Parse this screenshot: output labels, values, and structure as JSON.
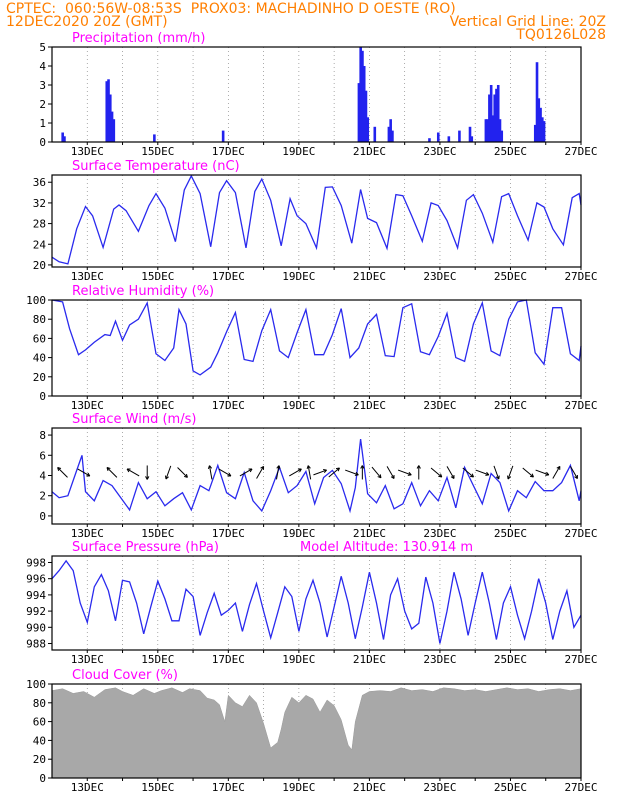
{
  "header": {
    "line1": "CPTEC:  060:56W-08:53S  PROX03: MACHADINHO D OESTE (RO)",
    "line2_left": "12DEC2020 20Z (GMT)",
    "line2_right": "Vertical Grid Line: 20Z",
    "line3_right": "TQ0126L028"
  },
  "x_ticks": [
    "13DEC",
    "15DEC",
    "17DEC",
    "19DEC",
    "21DEC",
    "23DEC",
    "25DEC",
    "27DEC"
  ],
  "chart_data": [
    {
      "type": "bar",
      "title": "Precipitation (mm/h)",
      "ylim": [
        0,
        5
      ],
      "yticks": [
        "0",
        "1",
        "2",
        "3",
        "4",
        "5"
      ],
      "bars": [
        [
          12.3,
          0.5
        ],
        [
          12.35,
          0.3
        ],
        [
          13.55,
          3.2
        ],
        [
          13.6,
          3.3
        ],
        [
          13.65,
          2.5
        ],
        [
          13.7,
          1.6
        ],
        [
          13.75,
          1.2
        ],
        [
          14.9,
          0.4
        ],
        [
          16.85,
          0.6
        ],
        [
          20.7,
          3.1
        ],
        [
          20.75,
          5.0
        ],
        [
          20.8,
          4.8
        ],
        [
          20.85,
          4.0
        ],
        [
          20.9,
          2.7
        ],
        [
          20.95,
          1.3
        ],
        [
          21.15,
          0.8
        ],
        [
          21.55,
          0.8
        ],
        [
          21.6,
          1.2
        ],
        [
          21.65,
          0.6
        ],
        [
          22.7,
          0.2
        ],
        [
          22.95,
          0.5
        ],
        [
          23.25,
          0.3
        ],
        [
          23.55,
          0.6
        ],
        [
          23.85,
          0.8
        ],
        [
          23.9,
          0.3
        ],
        [
          24.3,
          1.2
        ],
        [
          24.35,
          1.2
        ],
        [
          24.4,
          2.5
        ],
        [
          24.45,
          3.0
        ],
        [
          24.5,
          1.4
        ],
        [
          24.55,
          2.5
        ],
        [
          24.6,
          2.8
        ],
        [
          24.65,
          3.0
        ],
        [
          24.7,
          1.2
        ],
        [
          24.75,
          0.6
        ],
        [
          25.7,
          0.9
        ],
        [
          25.75,
          4.2
        ],
        [
          25.8,
          2.3
        ],
        [
          25.85,
          1.8
        ],
        [
          25.9,
          1.3
        ],
        [
          25.95,
          1.1
        ]
      ]
    },
    {
      "type": "line",
      "title": "Surface Temperature (nC)",
      "ylim": [
        19.6,
        37.4
      ],
      "yticks": [
        "20",
        "24",
        "28",
        "32",
        "36"
      ],
      "x": [
        12.0,
        12.2,
        12.45,
        12.7,
        12.95,
        13.15,
        13.45,
        13.75,
        13.9,
        14.1,
        14.45,
        14.75,
        14.95,
        15.2,
        15.5,
        15.75,
        15.95,
        16.2,
        16.5,
        16.75,
        16.95,
        17.2,
        17.5,
        17.75,
        17.95,
        18.2,
        18.5,
        18.75,
        18.95,
        19.2,
        19.5,
        19.75,
        19.95,
        20.2,
        20.5,
        20.75,
        20.95,
        21.2,
        21.5,
        21.75,
        21.95,
        22.2,
        22.5,
        22.75,
        22.95,
        23.2,
        23.5,
        23.75,
        23.95,
        24.2,
        24.5,
        24.75,
        24.95,
        25.2,
        25.5,
        25.75,
        25.95,
        26.2,
        26.5,
        26.75,
        26.95,
        27.0
      ],
      "y": [
        21.5,
        20.6,
        20.2,
        27.0,
        31.3,
        29.5,
        23.4,
        30.8,
        31.6,
        30.5,
        26.5,
        31.5,
        33.8,
        31.0,
        24.5,
        34.5,
        37.2,
        33.8,
        23.5,
        34.0,
        36.3,
        34.0,
        23.3,
        34.2,
        36.6,
        32.5,
        23.7,
        32.8,
        29.5,
        28.0,
        23.3,
        35.0,
        35.1,
        31.5,
        24.2,
        34.6,
        29.0,
        28.2,
        23.2,
        33.6,
        33.4,
        29.5,
        24.6,
        32.0,
        31.5,
        28.6,
        23.3,
        32.5,
        33.6,
        30.0,
        24.4,
        33.2,
        33.8,
        29.5,
        24.8,
        32.0,
        31.2,
        27.0,
        23.9,
        33.0,
        33.8,
        31.6
      ]
    },
    {
      "type": "line",
      "title": "Relative Humidity (%)",
      "ylim": [
        0,
        100
      ],
      "yticks": [
        "0",
        "20",
        "40",
        "60",
        "80",
        "100"
      ],
      "x": [
        12.0,
        12.3,
        12.5,
        12.75,
        12.95,
        13.2,
        13.5,
        13.65,
        13.8,
        14.0,
        14.2,
        14.45,
        14.7,
        14.95,
        15.2,
        15.45,
        15.6,
        15.8,
        16.0,
        16.2,
        16.5,
        16.7,
        16.95,
        17.2,
        17.45,
        17.7,
        17.95,
        18.2,
        18.45,
        18.7,
        18.95,
        19.2,
        19.45,
        19.7,
        19.95,
        20.2,
        20.45,
        20.7,
        20.95,
        21.2,
        21.45,
        21.7,
        21.95,
        22.2,
        22.45,
        22.7,
        22.95,
        23.2,
        23.45,
        23.7,
        23.95,
        24.2,
        24.45,
        24.7,
        24.95,
        25.2,
        25.45,
        25.7,
        25.95,
        26.2,
        26.45,
        26.7,
        26.95,
        27.0
      ],
      "y": [
        100,
        98,
        70,
        43,
        48,
        56,
        64,
        63,
        78,
        58,
        74,
        80,
        97,
        44,
        37,
        50,
        90,
        75,
        26,
        22,
        30,
        45,
        67,
        87,
        38,
        36,
        68,
        90,
        47,
        40,
        66,
        90,
        43,
        43,
        64,
        91,
        40,
        50,
        75,
        85,
        42,
        41,
        92,
        96,
        46,
        43,
        62,
        86,
        40,
        36,
        75,
        97,
        47,
        42,
        80,
        98,
        100,
        45,
        33,
        92,
        92,
        44,
        37,
        52
      ]
    },
    {
      "type": "line",
      "title": "Surface Wind (m/s)",
      "ylim": [
        -0.8,
        8.7
      ],
      "yticks": [
        "0",
        "2",
        "4",
        "6",
        "8"
      ],
      "x": [
        12.0,
        12.2,
        12.45,
        12.7,
        12.85,
        12.95,
        13.2,
        13.45,
        13.7,
        13.95,
        14.2,
        14.45,
        14.7,
        14.95,
        15.2,
        15.45,
        15.7,
        15.95,
        16.2,
        16.45,
        16.7,
        16.95,
        17.2,
        17.45,
        17.7,
        17.95,
        18.2,
        18.45,
        18.7,
        18.95,
        19.2,
        19.45,
        19.7,
        19.95,
        20.2,
        20.45,
        20.6,
        20.75,
        20.95,
        21.2,
        21.45,
        21.7,
        21.95,
        22.2,
        22.45,
        22.7,
        22.95,
        23.2,
        23.45,
        23.7,
        23.95,
        24.2,
        24.45,
        24.7,
        24.95,
        25.2,
        25.45,
        25.7,
        25.95,
        26.2,
        26.45,
        26.7,
        26.95,
        27.0
      ],
      "y": [
        2.4,
        1.8,
        2.0,
        4.5,
        6.0,
        2.4,
        1.5,
        3.5,
        3.0,
        1.8,
        0.6,
        3.3,
        1.7,
        2.4,
        1.0,
        1.7,
        2.3,
        0.6,
        3.0,
        2.5,
        5.0,
        2.3,
        1.7,
        4.3,
        1.5,
        0.5,
        2.5,
        4.8,
        2.3,
        3.0,
        4.4,
        1.2,
        3.8,
        4.5,
        3.2,
        0.5,
        2.8,
        7.6,
        2.2,
        1.3,
        3.0,
        0.7,
        1.2,
        3.3,
        1.0,
        2.5,
        1.5,
        3.8,
        0.8,
        4.8,
        3.0,
        1.2,
        4.2,
        3.3,
        0.5,
        2.5,
        1.8,
        3.4,
        2.5,
        2.5,
        3.3,
        5.0,
        1.5,
        2.5
      ],
      "arrows": [
        [
          12.3,
          4.3,
          135
        ],
        [
          12.9,
          4.3,
          -30
        ],
        [
          13.7,
          4.3,
          135
        ],
        [
          14.3,
          4.3,
          150
        ],
        [
          14.7,
          4.3,
          -90
        ],
        [
          15.3,
          4.3,
          -110
        ],
        [
          15.7,
          4.3,
          -45
        ],
        [
          16.5,
          4.3,
          100
        ],
        [
          16.9,
          4.3,
          -30
        ],
        [
          17.5,
          4.3,
          30
        ],
        [
          17.9,
          4.3,
          60
        ],
        [
          18.4,
          4.3,
          80
        ],
        [
          18.9,
          4.3,
          30
        ],
        [
          19.3,
          4.3,
          100
        ],
        [
          19.6,
          4.3,
          20
        ],
        [
          20.0,
          4.3,
          40
        ],
        [
          20.5,
          4.3,
          -20
        ],
        [
          20.8,
          4.3,
          90
        ],
        [
          21.2,
          4.3,
          -50
        ],
        [
          21.6,
          4.3,
          -60
        ],
        [
          22.0,
          4.3,
          -20
        ],
        [
          22.4,
          4.3,
          90
        ],
        [
          22.9,
          4.3,
          -40
        ],
        [
          23.3,
          4.3,
          -60
        ],
        [
          23.8,
          4.3,
          -40
        ],
        [
          24.2,
          4.3,
          -20
        ],
        [
          24.6,
          4.3,
          -70
        ],
        [
          25.0,
          4.3,
          -110
        ],
        [
          25.5,
          4.3,
          -40
        ],
        [
          25.9,
          4.3,
          -20
        ],
        [
          26.3,
          4.3,
          60
        ],
        [
          26.8,
          4.3,
          -60
        ]
      ]
    },
    {
      "type": "line",
      "title": "Surface Pressure (hPa)",
      "annotation": "Model Altitude: 130.914 m",
      "ylim": [
        987.2,
        998.8
      ],
      "yticks": [
        "988",
        "990",
        "992",
        "994",
        "996",
        "998"
      ],
      "x": [
        12.0,
        12.2,
        12.4,
        12.6,
        12.8,
        13.0,
        13.2,
        13.4,
        13.6,
        13.8,
        14.0,
        14.2,
        14.4,
        14.6,
        14.8,
        15.0,
        15.2,
        15.4,
        15.6,
        15.8,
        16.0,
        16.2,
        16.4,
        16.6,
        16.8,
        17.0,
        17.2,
        17.4,
        17.6,
        17.8,
        18.0,
        18.2,
        18.4,
        18.6,
        18.8,
        19.0,
        19.2,
        19.4,
        19.6,
        19.8,
        20.0,
        20.2,
        20.4,
        20.6,
        20.8,
        21.0,
        21.2,
        21.4,
        21.6,
        21.8,
        22.0,
        22.2,
        22.4,
        22.6,
        22.8,
        23.0,
        23.2,
        23.4,
        23.6,
        23.8,
        24.0,
        24.2,
        24.4,
        24.6,
        24.8,
        25.0,
        25.2,
        25.4,
        25.6,
        25.8,
        26.0,
        26.2,
        26.4,
        26.6,
        26.8,
        27.0
      ],
      "y": [
        996,
        997,
        998.2,
        997.0,
        993.0,
        990.6,
        995.0,
        996.5,
        994.5,
        990.8,
        995.8,
        995.6,
        993.0,
        989.2,
        992.5,
        995.7,
        993.5,
        990.8,
        990.8,
        994.7,
        993.8,
        989.0,
        991.8,
        994.2,
        991.5,
        992.1,
        993.0,
        989.5,
        992.8,
        995.4,
        992.0,
        988.7,
        991.8,
        995.0,
        993.8,
        989.5,
        993.5,
        995.8,
        993.0,
        988.8,
        992.5,
        996.3,
        993.0,
        988.6,
        992.5,
        996.8,
        993.0,
        988.5,
        994.0,
        996.0,
        992.0,
        989.8,
        990.5,
        996.2,
        993.0,
        988.0,
        992.0,
        996.8,
        993.5,
        989.0,
        993.0,
        996.8,
        993.0,
        988.5,
        993.0,
        995.0,
        991.5,
        988.6,
        992.0,
        996.0,
        993.0,
        988.5,
        992.0,
        994.5,
        990.0,
        991.5
      ]
    },
    {
      "type": "area",
      "title": "Cloud Cover (%)",
      "ylim": [
        0,
        100
      ],
      "yticks": [
        "0",
        "20",
        "40",
        "60",
        "80",
        "100"
      ],
      "x": [
        12.0,
        12.3,
        12.6,
        12.9,
        13.2,
        13.5,
        13.8,
        14.0,
        14.3,
        14.6,
        14.9,
        15.1,
        15.4,
        15.7,
        15.9,
        16.2,
        16.4,
        16.6,
        16.75,
        16.9,
        17.0,
        17.2,
        17.4,
        17.6,
        17.8,
        18.0,
        18.2,
        18.4,
        18.5,
        18.6,
        18.8,
        19.0,
        19.2,
        19.4,
        19.6,
        19.8,
        20.0,
        20.2,
        20.4,
        20.5,
        20.6,
        20.8,
        21.0,
        21.3,
        21.6,
        21.9,
        22.2,
        22.5,
        22.8,
        23.1,
        23.4,
        23.7,
        24.0,
        24.3,
        24.6,
        24.9,
        25.2,
        25.5,
        25.8,
        26.1,
        26.4,
        26.7,
        27.0
      ],
      "y": [
        93,
        95,
        90,
        92,
        86,
        94,
        96,
        92,
        88,
        95,
        90,
        93,
        96,
        91,
        95,
        93,
        85,
        83,
        78,
        60,
        88,
        80,
        76,
        88,
        80,
        58,
        32,
        38,
        52,
        70,
        86,
        80,
        88,
        84,
        70,
        83,
        77,
        62,
        35,
        30,
        60,
        88,
        92,
        93,
        92,
        96,
        93,
        94,
        92,
        96,
        95,
        93,
        94,
        92,
        94,
        96,
        94,
        95,
        92,
        94,
        95,
        93,
        95
      ]
    }
  ]
}
